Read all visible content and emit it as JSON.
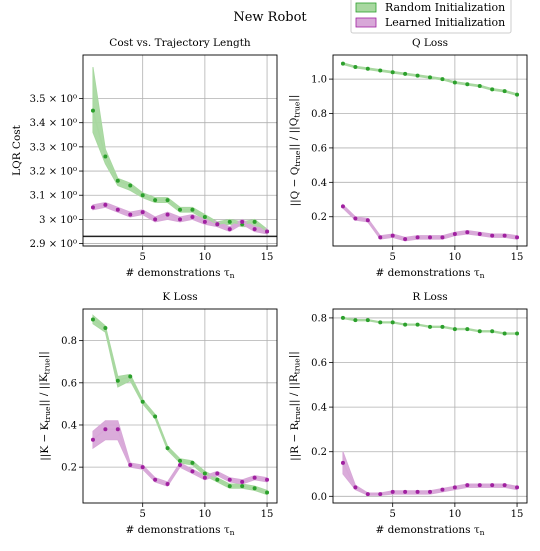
{
  "figure": {
    "suptitle": "New Robot",
    "legend": {
      "placement": "top-right",
      "entries": [
        {
          "label": "Random Initialization",
          "color": "#2ca02c",
          "fill": "#a8d8a0"
        },
        {
          "label": "Learned Initialization",
          "color": "#a020a0",
          "fill": "#d8a8d8"
        }
      ]
    }
  },
  "chart_data": [
    {
      "type": "line",
      "title": "Cost vs. Trajectory Length",
      "xlabel": "# demonstrations τ_n",
      "ylabel": "LQR Cost",
      "xlim": [
        0.2,
        15.8
      ],
      "ylim": [
        2.89,
        3.68
      ],
      "xticks": [
        5,
        10,
        15
      ],
      "xticklabels": [
        "5",
        "10",
        "15"
      ],
      "yticks": [
        2.9,
        3.0,
        3.1,
        3.2,
        3.3,
        3.4,
        3.5
      ],
      "yticklabels": [
        "2.9 × 10⁰",
        "3 × 10⁰",
        "3.1 × 10⁰",
        "3.2 × 10⁰",
        "3.3 × 10⁰",
        "3.4 × 10⁰",
        "3.5 × 10⁰"
      ],
      "grid": true,
      "hline": 2.93,
      "x": [
        1,
        2,
        3,
        4,
        5,
        6,
        7,
        8,
        9,
        10,
        11,
        12,
        13,
        14,
        15
      ],
      "series": [
        {
          "name": "Random Initialization",
          "color": "#2ca02c",
          "fill": "#a8d8a0",
          "values": [
            3.45,
            3.26,
            3.16,
            3.14,
            3.1,
            3.08,
            3.08,
            3.04,
            3.04,
            3.01,
            2.98,
            2.99,
            2.98,
            2.99,
            2.95
          ],
          "lower": [
            3.36,
            3.23,
            3.14,
            3.12,
            3.09,
            3.07,
            3.07,
            3.03,
            3.03,
            3.0,
            2.97,
            2.98,
            2.97,
            2.97,
            2.94
          ],
          "upper": [
            3.63,
            3.29,
            3.17,
            3.15,
            3.11,
            3.09,
            3.09,
            3.05,
            3.05,
            3.02,
            2.99,
            3.0,
            2.99,
            3.0,
            2.96
          ]
        },
        {
          "name": "Learned Initialization",
          "color": "#a020a0",
          "fill": "#d8a8d8",
          "values": [
            3.05,
            3.06,
            3.04,
            3.02,
            3.03,
            3.0,
            3.02,
            3.0,
            3.01,
            2.99,
            2.98,
            2.96,
            2.99,
            2.96,
            2.95
          ],
          "lower": [
            3.04,
            3.05,
            3.03,
            3.01,
            3.02,
            2.99,
            3.0,
            2.99,
            3.0,
            2.98,
            2.97,
            2.95,
            2.98,
            2.95,
            2.94
          ],
          "upper": [
            3.06,
            3.07,
            3.05,
            3.03,
            3.04,
            3.01,
            3.03,
            3.01,
            3.02,
            3.0,
            2.99,
            2.97,
            3.0,
            2.97,
            2.96
          ]
        }
      ]
    },
    {
      "type": "line",
      "title": "Q Loss",
      "xlabel": "# demonstrations τ_n",
      "ylabel": "||Q − Q_true|| / ||Q_true||",
      "xlim": [
        0.2,
        15.8
      ],
      "ylim": [
        0.03,
        1.14
      ],
      "xticks": [
        5,
        10,
        15
      ],
      "xticklabels": [
        "5",
        "10",
        "15"
      ],
      "yticks": [
        0.2,
        0.4,
        0.6,
        0.8,
        1.0
      ],
      "yticklabels": [
        "0.2",
        "0.4",
        "0.6",
        "0.8",
        "1.0"
      ],
      "grid": true,
      "x": [
        1,
        2,
        3,
        4,
        5,
        6,
        7,
        8,
        9,
        10,
        11,
        12,
        13,
        14,
        15
      ],
      "series": [
        {
          "name": "Random Initialization",
          "color": "#2ca02c",
          "fill": "#a8d8a0",
          "values": [
            1.09,
            1.07,
            1.06,
            1.05,
            1.04,
            1.03,
            1.02,
            1.01,
            1.0,
            0.98,
            0.97,
            0.96,
            0.94,
            0.93,
            0.91
          ],
          "lower": [
            1.085,
            1.065,
            1.055,
            1.045,
            1.035,
            1.025,
            1.015,
            1.005,
            0.995,
            0.975,
            0.965,
            0.955,
            0.935,
            0.925,
            0.905
          ],
          "upper": [
            1.095,
            1.075,
            1.065,
            1.055,
            1.045,
            1.035,
            1.025,
            1.015,
            1.005,
            0.985,
            0.975,
            0.965,
            0.945,
            0.935,
            0.915
          ]
        },
        {
          "name": "Learned Initialization",
          "color": "#a020a0",
          "fill": "#d8a8d8",
          "values": [
            0.26,
            0.19,
            0.18,
            0.08,
            0.09,
            0.07,
            0.08,
            0.08,
            0.08,
            0.1,
            0.11,
            0.1,
            0.09,
            0.09,
            0.08
          ],
          "lower": [
            0.25,
            0.18,
            0.17,
            0.07,
            0.08,
            0.06,
            0.07,
            0.07,
            0.07,
            0.09,
            0.1,
            0.09,
            0.08,
            0.08,
            0.07
          ],
          "upper": [
            0.27,
            0.2,
            0.19,
            0.09,
            0.1,
            0.08,
            0.09,
            0.09,
            0.09,
            0.11,
            0.12,
            0.11,
            0.1,
            0.1,
            0.09
          ]
        }
      ]
    },
    {
      "type": "line",
      "title": "K Loss",
      "xlabel": "# demonstrations τ_n",
      "ylabel": "||K − K_true|| / ||K_true||",
      "xlim": [
        0.2,
        15.8
      ],
      "ylim": [
        0.03,
        0.95
      ],
      "xticks": [
        5,
        10,
        15
      ],
      "xticklabels": [
        "5",
        "10",
        "15"
      ],
      "yticks": [
        0.2,
        0.4,
        0.6,
        0.8
      ],
      "yticklabels": [
        "0.2",
        "0.4",
        "0.6",
        "0.8"
      ],
      "grid": true,
      "x": [
        1,
        2,
        3,
        4,
        5,
        6,
        7,
        8,
        9,
        10,
        11,
        12,
        13,
        14,
        15
      ],
      "series": [
        {
          "name": "Random Initialization",
          "color": "#2ca02c",
          "fill": "#a8d8a0",
          "values": [
            0.9,
            0.86,
            0.61,
            0.63,
            0.51,
            0.44,
            0.29,
            0.23,
            0.22,
            0.17,
            0.14,
            0.11,
            0.11,
            0.1,
            0.08
          ],
          "lower": [
            0.88,
            0.84,
            0.58,
            0.61,
            0.5,
            0.43,
            0.28,
            0.22,
            0.21,
            0.16,
            0.13,
            0.1,
            0.1,
            0.09,
            0.07
          ],
          "upper": [
            0.92,
            0.87,
            0.63,
            0.64,
            0.52,
            0.45,
            0.3,
            0.24,
            0.23,
            0.18,
            0.15,
            0.12,
            0.12,
            0.11,
            0.09
          ]
        },
        {
          "name": "Learned Initialization",
          "color": "#a020a0",
          "fill": "#d8a8d8",
          "values": [
            0.33,
            0.38,
            0.38,
            0.21,
            0.2,
            0.14,
            0.12,
            0.21,
            0.18,
            0.15,
            0.17,
            0.14,
            0.13,
            0.15,
            0.14
          ],
          "lower": [
            0.29,
            0.33,
            0.33,
            0.2,
            0.19,
            0.13,
            0.11,
            0.2,
            0.17,
            0.14,
            0.16,
            0.13,
            0.12,
            0.14,
            0.13
          ],
          "upper": [
            0.37,
            0.42,
            0.42,
            0.22,
            0.21,
            0.15,
            0.13,
            0.22,
            0.19,
            0.16,
            0.18,
            0.15,
            0.14,
            0.16,
            0.15
          ]
        }
      ]
    },
    {
      "type": "line",
      "title": "R Loss",
      "xlabel": "# demonstrations τ_n",
      "ylabel": "||R − R_true|| / ||R_true||",
      "xlim": [
        0.2,
        15.8
      ],
      "ylim": [
        -0.03,
        0.84
      ],
      "xticks": [
        5,
        10,
        15
      ],
      "xticklabels": [
        "5",
        "10",
        "15"
      ],
      "yticks": [
        0.0,
        0.2,
        0.4,
        0.6,
        0.8
      ],
      "yticklabels": [
        "0.0",
        "0.2",
        "0.4",
        "0.6",
        "0.8"
      ],
      "grid": true,
      "x": [
        1,
        2,
        3,
        4,
        5,
        6,
        7,
        8,
        9,
        10,
        11,
        12,
        13,
        14,
        15
      ],
      "series": [
        {
          "name": "Random Initialization",
          "color": "#2ca02c",
          "fill": "#a8d8a0",
          "values": [
            0.8,
            0.79,
            0.79,
            0.78,
            0.78,
            0.77,
            0.77,
            0.76,
            0.76,
            0.75,
            0.75,
            0.74,
            0.74,
            0.73,
            0.73
          ],
          "lower": [
            0.797,
            0.787,
            0.787,
            0.777,
            0.777,
            0.767,
            0.767,
            0.757,
            0.757,
            0.747,
            0.747,
            0.737,
            0.737,
            0.727,
            0.727
          ],
          "upper": [
            0.803,
            0.793,
            0.793,
            0.783,
            0.783,
            0.773,
            0.773,
            0.763,
            0.763,
            0.753,
            0.753,
            0.743,
            0.743,
            0.733,
            0.733
          ]
        },
        {
          "name": "Learned Initialization",
          "color": "#a020a0",
          "fill": "#d8a8d8",
          "values": [
            0.15,
            0.04,
            0.01,
            0.01,
            0.02,
            0.02,
            0.02,
            0.02,
            0.03,
            0.04,
            0.05,
            0.05,
            0.05,
            0.05,
            0.04
          ],
          "lower": [
            0.1,
            0.03,
            0.005,
            0.005,
            0.01,
            0.01,
            0.01,
            0.01,
            0.02,
            0.03,
            0.04,
            0.04,
            0.04,
            0.04,
            0.03
          ],
          "upper": [
            0.2,
            0.05,
            0.015,
            0.015,
            0.025,
            0.025,
            0.025,
            0.025,
            0.035,
            0.045,
            0.055,
            0.055,
            0.055,
            0.055,
            0.045
          ]
        }
      ]
    }
  ]
}
